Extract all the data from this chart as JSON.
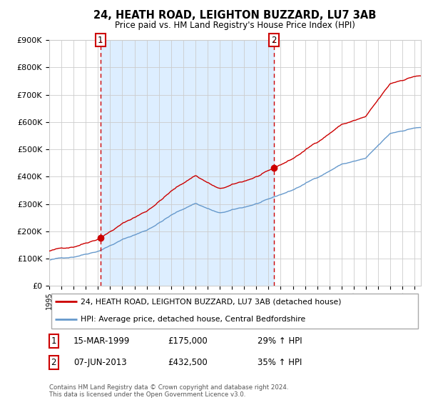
{
  "title": "24, HEATH ROAD, LEIGHTON BUZZARD, LU7 3AB",
  "subtitle": "Price paid vs. HM Land Registry's House Price Index (HPI)",
  "title_fontsize": 10.5,
  "subtitle_fontsize": 8.5,
  "legend_line1": "24, HEATH ROAD, LEIGHTON BUZZARD, LU7 3AB (detached house)",
  "legend_line2": "HPI: Average price, detached house, Central Bedfordshire",
  "footnote": "Contains HM Land Registry data © Crown copyright and database right 2024.\nThis data is licensed under the Open Government Licence v3.0.",
  "annotation1_label": "1",
  "annotation1_date": "15-MAR-1999",
  "annotation1_price": "£175,000",
  "annotation1_hpi": "29% ↑ HPI",
  "annotation1_year": 1999.21,
  "annotation1_value": 175000,
  "annotation2_label": "2",
  "annotation2_date": "07-JUN-2013",
  "annotation2_price": "£432,500",
  "annotation2_hpi": "35% ↑ HPI",
  "annotation2_year": 2013.44,
  "annotation2_value": 432500,
  "red_line_color": "#cc0000",
  "blue_line_color": "#6699cc",
  "shaded_region_color": "#ddeeff",
  "dashed_line_color": "#cc0000",
  "background_color": "#ffffff",
  "grid_color": "#cccccc",
  "ylim": [
    0,
    900000
  ],
  "yticks": [
    0,
    100000,
    200000,
    300000,
    400000,
    500000,
    600000,
    700000,
    800000,
    900000
  ],
  "year_start": 1995,
  "year_end": 2025,
  "hpi_anchors_t": [
    1995,
    1997,
    1999,
    2001,
    2003,
    2005,
    2007,
    2009,
    2011,
    2013,
    2015,
    2017,
    2019,
    2021,
    2023,
    2025
  ],
  "hpi_anchors_v": [
    95000,
    108000,
    133000,
    175000,
    210000,
    265000,
    310000,
    272000,
    292000,
    318000,
    352000,
    398000,
    448000,
    468000,
    555000,
    578000
  ]
}
